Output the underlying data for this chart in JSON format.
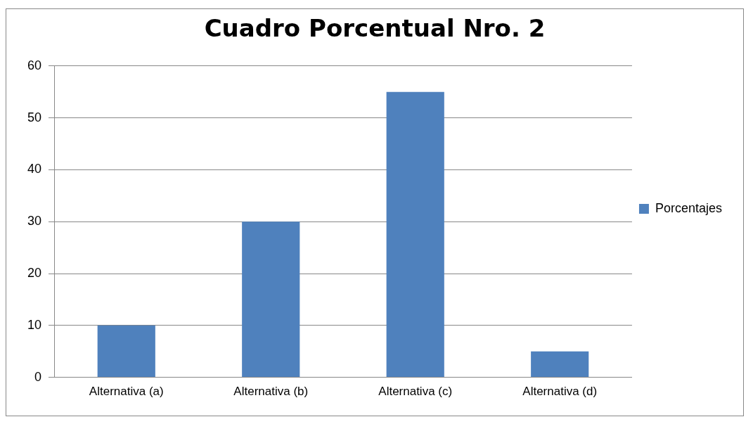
{
  "chart_data": {
    "type": "bar",
    "title": "Cuadro Porcentual Nro. 2",
    "categories": [
      "Alternativa (a)",
      "Alternativa (b)",
      "Alternativa (c)",
      "Alternativa (d)"
    ],
    "series": [
      {
        "name": "Porcentajes",
        "color": "#4f81bd",
        "values": [
          10,
          30,
          55,
          5
        ]
      }
    ],
    "ylim": [
      0,
      60
    ],
    "yticks": [
      0,
      10,
      20,
      30,
      40,
      50,
      60
    ],
    "grid": "y",
    "legend": "right"
  }
}
